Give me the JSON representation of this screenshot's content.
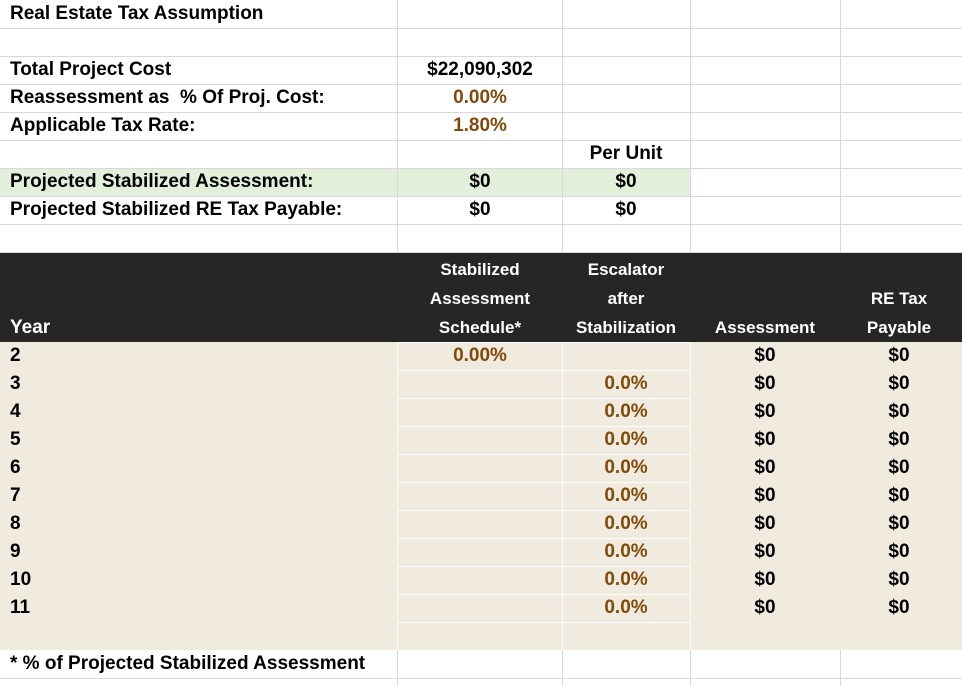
{
  "title": "Real Estate Tax Assumption",
  "summary": [
    {
      "label": "Total Project Cost",
      "value": "$22,090,302"
    },
    {
      "label": "Reassessment as  % Of Proj. Cost:",
      "value": "0.00%"
    },
    {
      "label": "Applicable Tax Rate:",
      "value": "1.80%"
    }
  ],
  "per_unit_header": "Per Unit",
  "projected": [
    {
      "label": "Projected Stabilized Assessment:",
      "value": "$0",
      "per_unit": "$0"
    },
    {
      "label": "Projected Stabilized RE Tax Payable:",
      "value": "$0",
      "per_unit": "$0"
    }
  ],
  "table": {
    "headers": {
      "year": [
        "Year"
      ],
      "schedule": [
        "Stabilized",
        "Assessment",
        "Schedule*"
      ],
      "escalator": [
        "Escalator",
        "after",
        "Stabilization"
      ],
      "assessment": [
        "Assessment"
      ],
      "re_tax": [
        "RE Tax",
        "Payable"
      ]
    },
    "rows": [
      {
        "year": "2",
        "schedule": "0.00%",
        "assessment": "$0",
        "re_tax": "$0"
      },
      {
        "year": "3",
        "escalator": "0.0%",
        "assessment": "$0",
        "re_tax": "$0"
      },
      {
        "year": "4",
        "escalator": "0.0%",
        "assessment": "$0",
        "re_tax": "$0"
      },
      {
        "year": "5",
        "escalator": "0.0%",
        "assessment": "$0",
        "re_tax": "$0"
      },
      {
        "year": "6",
        "escalator": "0.0%",
        "assessment": "$0",
        "re_tax": "$0"
      },
      {
        "year": "7",
        "escalator": "0.0%",
        "assessment": "$0",
        "re_tax": "$0"
      },
      {
        "year": "8",
        "escalator": "0.0%",
        "assessment": "$0",
        "re_tax": "$0"
      },
      {
        "year": "9",
        "escalator": "0.0%",
        "assessment": "$0",
        "re_tax": "$0"
      },
      {
        "year": "10",
        "escalator": "0.0%",
        "assessment": "$0",
        "re_tax": "$0"
      },
      {
        "year": "11",
        "escalator": "0.0%",
        "assessment": "$0",
        "re_tax": "$0"
      }
    ]
  },
  "footnote": "* % of Projected Stabilized Assessment"
}
